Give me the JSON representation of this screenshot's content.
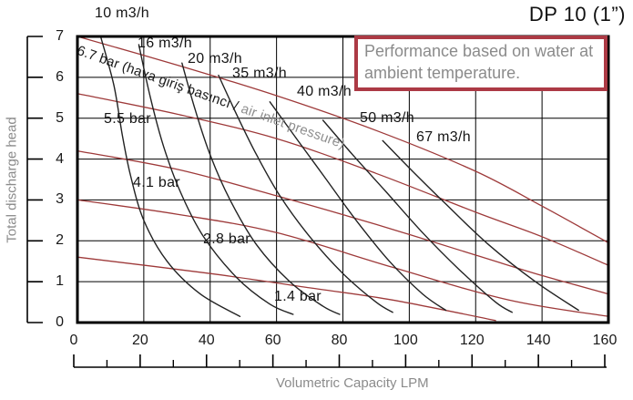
{
  "title": "DP 10 (1”)",
  "note": "Performance based on water at ambient temperature.",
  "diagonal_label": {
    "black_part": "6.7 bar (hava giriş basıncı /",
    "gray_part": " air inlet pressure)"
  },
  "y_axis": {
    "label": "Total discharge head",
    "ticks": [
      0,
      1,
      2,
      3,
      4,
      5,
      6,
      7
    ]
  },
  "x_axis": {
    "label": "Volumetric Capacity LPM",
    "ticks": [
      0,
      20,
      40,
      60,
      80,
      100,
      120,
      140,
      160
    ]
  },
  "colors": {
    "pressure_curve": "#9e3a3a",
    "flow_curve": "#222222",
    "note_border": "#ac3a45",
    "muted_text": "#8b8b8b",
    "grid": "#000000"
  },
  "chart_data": {
    "type": "line",
    "title": "DP 10 (1”) pump performance",
    "xlabel": "Volumetric Capacity LPM",
    "ylabel": "Total discharge head",
    "xlim": [
      0,
      160
    ],
    "ylim": [
      0,
      7
    ],
    "grid": true,
    "legend_position": "inline-labels",
    "series": [
      {
        "name": "6.7 bar",
        "group": "air-inlet-pressure",
        "color": "#9e3a3a",
        "points": [
          [
            0,
            7.0
          ],
          [
            30,
            6.3
          ],
          [
            60,
            5.55
          ],
          [
            90,
            4.7
          ],
          [
            120,
            3.7
          ],
          [
            140,
            2.85
          ],
          [
            160,
            1.95
          ]
        ]
      },
      {
        "name": "5.5 bar",
        "group": "air-inlet-pressure",
        "color": "#9e3a3a",
        "points": [
          [
            0,
            5.6
          ],
          [
            30,
            5.1
          ],
          [
            60,
            4.5
          ],
          [
            90,
            3.65
          ],
          [
            120,
            2.7
          ],
          [
            140,
            2.1
          ],
          [
            160,
            1.4
          ]
        ]
      },
      {
        "name": "4.1 bar",
        "group": "air-inlet-pressure",
        "color": "#9e3a3a",
        "points": [
          [
            0,
            4.2
          ],
          [
            30,
            3.75
          ],
          [
            60,
            3.1
          ],
          [
            90,
            2.4
          ],
          [
            120,
            1.65
          ],
          [
            140,
            1.15
          ],
          [
            160,
            0.7
          ]
        ]
      },
      {
        "name": "2.8 bar",
        "group": "air-inlet-pressure",
        "color": "#9e3a3a",
        "points": [
          [
            0,
            3.0
          ],
          [
            30,
            2.65
          ],
          [
            60,
            2.2
          ],
          [
            95,
            1.35
          ],
          [
            130,
            0.55
          ],
          [
            160,
            0.15
          ]
        ]
      },
      {
        "name": "1.4 bar",
        "group": "air-inlet-pressure",
        "color": "#9e3a3a",
        "points": [
          [
            0,
            1.6
          ],
          [
            40,
            1.2
          ],
          [
            70,
            0.85
          ],
          [
            95,
            0.55
          ],
          [
            126,
            0.05
          ]
        ]
      },
      {
        "name": "10 m3/h",
        "group": "air-flow",
        "color": "#222222",
        "points": [
          [
            7,
            7.0
          ],
          [
            11,
            5.8
          ],
          [
            13.5,
            4.6
          ],
          [
            16,
            3.6
          ],
          [
            20,
            2.5
          ],
          [
            27,
            1.5
          ],
          [
            37,
            0.7
          ],
          [
            49,
            0.15
          ]
        ]
      },
      {
        "name": "16 m3/h",
        "group": "air-flow",
        "color": "#222222",
        "points": [
          [
            18.5,
            6.8
          ],
          [
            22,
            5.5
          ],
          [
            26,
            4.3
          ],
          [
            31,
            3.2
          ],
          [
            38,
            2.1
          ],
          [
            48,
            1.1
          ],
          [
            58,
            0.45
          ],
          [
            65,
            0.2
          ]
        ]
      },
      {
        "name": "20 m3/h",
        "group": "air-flow",
        "color": "#222222",
        "points": [
          [
            31.5,
            6.35
          ],
          [
            35.5,
            5.2
          ],
          [
            40,
            4.1
          ],
          [
            46,
            3.0
          ],
          [
            54,
            1.9
          ],
          [
            64,
            1.0
          ],
          [
            74,
            0.4
          ],
          [
            79,
            0.2
          ]
        ]
      },
      {
        "name": "35 m3/h",
        "group": "air-flow",
        "color": "#222222",
        "points": [
          [
            42.5,
            6.05
          ],
          [
            48.5,
            5.0
          ],
          [
            54,
            4.1
          ],
          [
            61,
            3.1
          ],
          [
            70,
            2.1
          ],
          [
            80,
            1.2
          ],
          [
            90,
            0.5
          ],
          [
            95,
            0.25
          ]
        ]
      },
      {
        "name": "40 m3/h",
        "group": "air-flow",
        "color": "#222222",
        "points": [
          [
            58,
            5.4
          ],
          [
            66,
            4.5
          ],
          [
            75,
            3.5
          ],
          [
            84,
            2.5
          ],
          [
            94,
            1.5
          ],
          [
            104,
            0.7
          ],
          [
            111,
            0.3
          ]
        ]
      },
      {
        "name": "50 m3/h",
        "group": "air-flow",
        "color": "#222222",
        "points": [
          [
            74,
            4.95
          ],
          [
            83,
            4.1
          ],
          [
            93,
            3.2
          ],
          [
            104,
            2.2
          ],
          [
            115,
            1.3
          ],
          [
            126,
            0.5
          ],
          [
            131,
            0.25
          ]
        ]
      },
      {
        "name": "67 m3/h",
        "group": "air-flow",
        "color": "#222222",
        "points": [
          [
            92,
            4.45
          ],
          [
            101,
            3.7
          ],
          [
            111,
            2.9
          ],
          [
            124,
            1.9
          ],
          [
            138,
            1.0
          ],
          [
            151,
            0.3
          ]
        ]
      }
    ]
  }
}
